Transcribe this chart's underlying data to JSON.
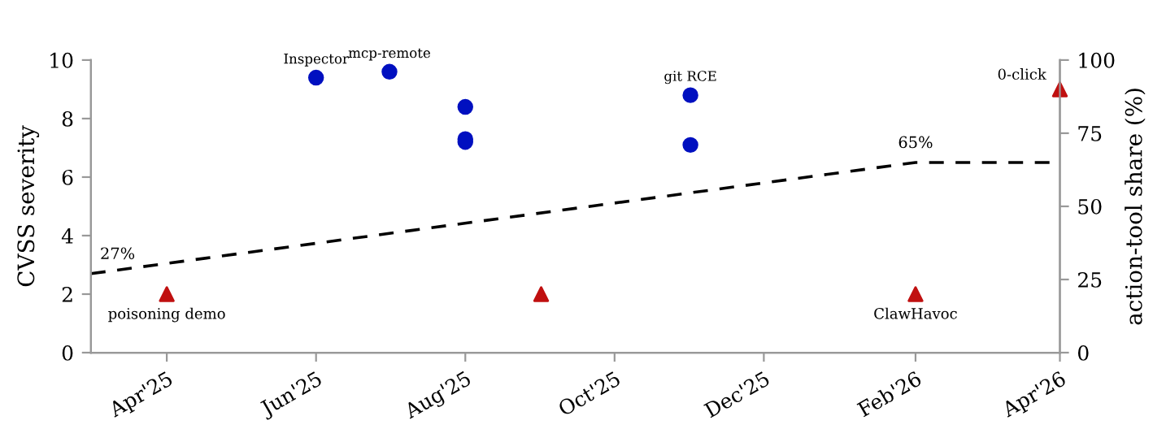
{
  "chart_data": {
    "type": "scatter",
    "ylabel": "CVSS severity",
    "y2label": "action-tool share (%)",
    "xlim": [
      "2025-03-01",
      "2026-04-01"
    ],
    "xticks": [
      {
        "value": "2025-04-01",
        "label": "Apr'25"
      },
      {
        "value": "2025-06-01",
        "label": "Jun'25"
      },
      {
        "value": "2025-08-01",
        "label": "Aug'25"
      },
      {
        "value": "2025-10-01",
        "label": "Oct'25"
      },
      {
        "value": "2025-12-01",
        "label": "Dec'25"
      },
      {
        "value": "2026-02-01",
        "label": "Feb'26"
      },
      {
        "value": "2026-04-01",
        "label": "Apr'26"
      }
    ],
    "ylim": [
      0,
      10
    ],
    "yticks": [
      0,
      2,
      4,
      6,
      8,
      10
    ],
    "y2lim": [
      0,
      100
    ],
    "y2ticks": [
      0,
      25,
      50,
      75,
      100
    ],
    "grid": false,
    "legend": false,
    "annotations": [
      {
        "text": "Inspector",
        "x": "2025-06-01",
        "y": 9.4
      },
      {
        "text": "mcp-remote",
        "x": "2025-07-01",
        "y": 9.6
      },
      {
        "text": "git RCE",
        "x": "2025-11-01",
        "y": 8.8
      },
      {
        "text": "poisoning demo",
        "x": "2025-04-01",
        "y": 2
      },
      {
        "text": "ClawHavoc",
        "x": "2026-02-01",
        "y": 2
      },
      {
        "text": "0-click",
        "x": "2026-04-01",
        "y": 9
      }
    ],
    "series": [
      {
        "color": "#0010c0",
        "marker": "circle",
        "x": [
          "2025-06-01",
          "2025-07-01",
          "2025-08-01",
          "2025-08-01",
          "2025-08-01",
          "2025-11-01",
          "2025-11-01"
        ],
        "values": [
          9.4,
          9.6,
          8.4,
          7.3,
          7.2,
          8.8,
          7.1
        ]
      },
      {
        "color": "#c01010",
        "marker": "triangle",
        "x": [
          "2025-04-01",
          "2025-09-01",
          "2026-02-01",
          "2026-04-01"
        ],
        "values": [
          2,
          2,
          2,
          9
        ]
      },
      {
        "type": "line",
        "axis": "y2",
        "color": "#000000",
        "line_style": "dashed",
        "marker": "none",
        "x": [
          "2025-03-01",
          "2026-02-01",
          "2026-04-01"
        ],
        "values": [
          27,
          65,
          65
        ],
        "value_labels": [
          "27%",
          "65%",
          null
        ]
      }
    ]
  }
}
